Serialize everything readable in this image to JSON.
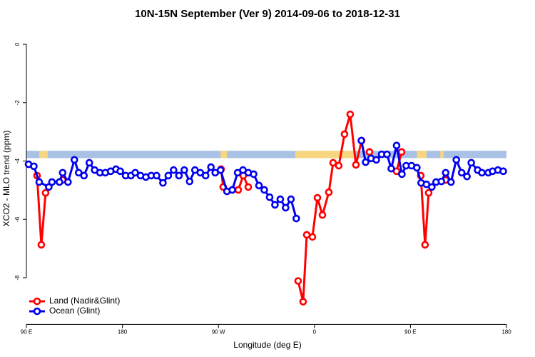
{
  "chart_data": {
    "type": "line",
    "title": "10N-15N September (Ver 9)   2014-09-06 to 2018-12-31",
    "x_label": "Longitude (deg E)",
    "y_label": "XCO2 - MLO trend (ppm)",
    "xlim": [
      90,
      540
    ],
    "xticks": [
      {
        "value": 90,
        "label": "90 E"
      },
      180,
      {
        "value": 270,
        "label": "90 W"
      },
      {
        "value": 360,
        "label": "0"
      },
      {
        "value": 450,
        "label": "90 E"
      },
      {
        "value": 540,
        "label": "180"
      }
    ],
    "ylim": [
      -9.6,
      0.5
    ],
    "yticks": [
      0,
      -2,
      -4,
      -6,
      -8
    ],
    "grid": false,
    "legend": "bottom-left",
    "band": {
      "ylim": [
        -3.9,
        -3.65
      ],
      "color": "#a8c1e4",
      "highlight_color": "#f8d67f",
      "highlights": [
        [
          102,
          110
        ],
        [
          272,
          278
        ],
        [
          342,
          398
        ],
        [
          456,
          465
        ],
        [
          478,
          481
        ]
      ]
    },
    "series": [
      {
        "name": "Land (Nadir&Glint)",
        "color": "#ff0000",
        "x": [
          100,
          104,
          108,
          116,
          124,
          200,
          272.5,
          274.5,
          281,
          288.6,
          293.3,
          298,
          320,
          344.7,
          349.4,
          352.8,
          358.1,
          362.8,
          367.5,
          373.5,
          377.5,
          382.8,
          388.2,
          393.5,
          398.9,
          404.2,
          408,
          411.6,
          425,
          437,
          441.7,
          450,
          459.7,
          463.7,
          467.1,
          475,
          483
        ],
        "values": [
          -4.5,
          -6.87,
          -5.09,
          null,
          -4.65,
          null,
          -4.28,
          -4.89,
          null,
          -4.99,
          -4.5,
          -4.89,
          null,
          -8.11,
          -8.82,
          -6.53,
          -6.6,
          -5.26,
          -5.85,
          -5.07,
          -4.06,
          -4.16,
          -3.08,
          -2.4,
          -4.13,
          -3.3,
          null,
          -3.69,
          null,
          -4.35,
          -3.69,
          null,
          -4.5,
          -6.87,
          -5.09,
          null,
          -4.65
        ]
      },
      {
        "name": "Ocean (Glint)",
        "color": "#0000ee",
        "x": [
          92,
          97,
          102,
          111,
          114,
          121,
          124,
          129,
          135,
          139,
          144,
          149,
          154,
          159,
          164,
          169,
          174,
          178,
          183,
          188,
          192,
          197,
          202,
          207,
          212,
          218,
          223,
          228,
          233,
          238,
          243,
          248,
          253,
          258,
          263,
          267,
          272,
          278,
          283,
          288,
          293,
          298,
          303,
          308,
          313,
          318,
          323,
          328,
          333,
          338,
          343,
          370,
          404,
          408,
          413,
          418,
          423,
          428,
          432,
          437,
          442,
          446,
          451,
          456,
          460,
          465,
          470,
          474,
          479,
          483,
          488,
          493,
          498,
          503,
          507,
          513,
          517,
          523,
          527,
          532,
          537
        ],
        "values": [
          -4.11,
          -4.18,
          -4.72,
          -4.89,
          -4.72,
          -4.72,
          -4.4,
          -4.72,
          -3.96,
          -4.4,
          -4.5,
          -4.06,
          -4.31,
          -4.4,
          -4.4,
          -4.35,
          -4.28,
          -4.35,
          -4.5,
          -4.5,
          -4.4,
          -4.5,
          -4.55,
          -4.5,
          -4.5,
          -4.75,
          -4.5,
          -4.31,
          -4.5,
          -4.31,
          -4.7,
          -4.31,
          -4.4,
          -4.5,
          -4.21,
          -4.4,
          -4.31,
          -5.04,
          -4.99,
          -4.4,
          -4.31,
          -4.4,
          -4.45,
          -4.84,
          -4.99,
          -5.24,
          -5.5,
          -5.31,
          -5.6,
          -5.31,
          -5.97,
          null,
          -3.3,
          -4.04,
          -3.91,
          -3.96,
          -3.77,
          -3.77,
          -4.26,
          -3.47,
          -4.45,
          -4.16,
          -4.16,
          -4.23,
          -4.75,
          -4.8,
          -4.89,
          -4.72,
          -4.7,
          -4.4,
          -4.72,
          -3.96,
          -4.4,
          -4.53,
          -4.06,
          -4.31,
          -4.4,
          -4.4,
          -4.35,
          -4.31,
          -4.35
        ]
      }
    ]
  }
}
